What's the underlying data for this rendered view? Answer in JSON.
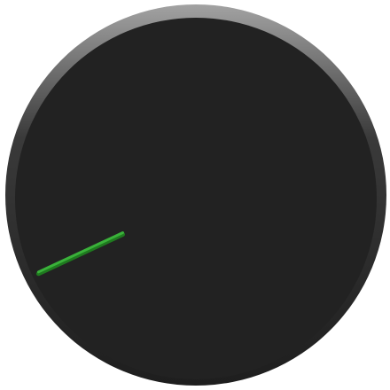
{
  "knob": {
    "indicator_angle_deg": 245,
    "colors": {
      "face": "#222222",
      "bezel_top": "#a2a2a2",
      "bezel_bottom": "#1e1e1e",
      "indicator": "#3ab23a",
      "indicator_shade": "#1f7a1f"
    }
  }
}
